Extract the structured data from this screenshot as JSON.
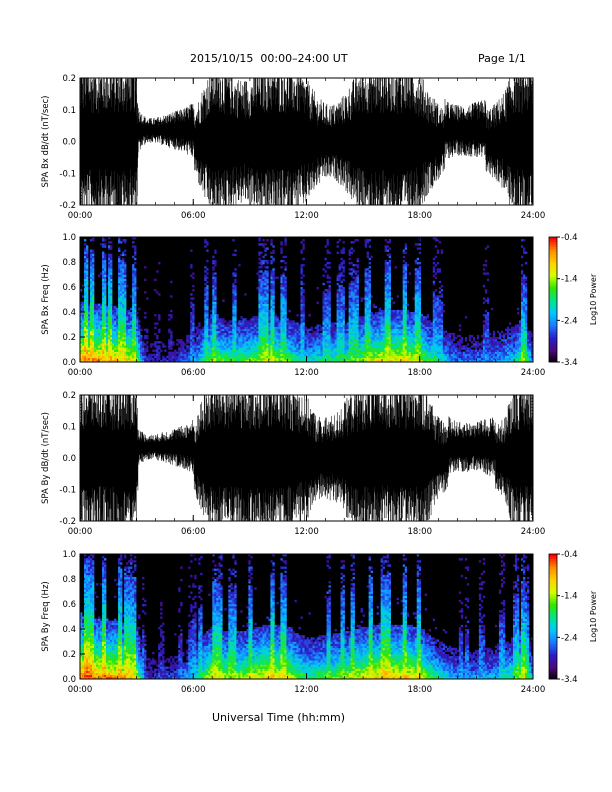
{
  "header": {
    "title": "2015/10/15  00:00–24:00 UT",
    "page": "Page 1/1",
    "xlabel": "Universal Time (hh:mm)"
  },
  "colors": {
    "background": "#ffffff",
    "trace": "#000000",
    "spectrogram_floor": "#000000",
    "colormap": [
      "#000000",
      "#4a0a7a",
      "#2a1ec8",
      "#1e78ff",
      "#00c8ff",
      "#00e48c",
      "#32e600",
      "#d2ff00",
      "#ffd200",
      "#ff8c00",
      "#ff0000"
    ]
  },
  "chart_data": [
    {
      "type": "line",
      "ylabel": "SPA Bx dB/dt (nT/sec)",
      "x_tick_labels": [
        "00:00",
        "06:00",
        "12:00",
        "18:00",
        "24:00"
      ],
      "xlim_hours": [
        0,
        24
      ],
      "ylim": [
        -0.2,
        0.2
      ],
      "y_ticks": [
        -0.2,
        -0.1,
        0.0,
        0.1,
        0.2
      ],
      "y_tick_labels": [
        "-0.2",
        "-0.1",
        "0.0",
        "0.1",
        "0.2"
      ],
      "envelope_hours": [
        0,
        0.5,
        1,
        1.5,
        2,
        2.5,
        3,
        3.1,
        3.5,
        4,
        4.5,
        5,
        5.5,
        6,
        6.5,
        7,
        7.5,
        8,
        8.5,
        9,
        9.5,
        10,
        10.5,
        11,
        11.5,
        12,
        12.5,
        13,
        13.5,
        14,
        14.5,
        15,
        15.5,
        16,
        16.5,
        17,
        17.5,
        18,
        18.5,
        19,
        19.5,
        20,
        20.5,
        21,
        21.5,
        22,
        22.5,
        23,
        23.5,
        24
      ],
      "envelope_amplitude": [
        0.25,
        0.25,
        0.25,
        0.25,
        0.25,
        0.25,
        0.25,
        0.07,
        0.04,
        0.04,
        0.05,
        0.06,
        0.07,
        0.09,
        0.17,
        0.25,
        0.25,
        0.22,
        0.2,
        0.2,
        0.25,
        0.25,
        0.25,
        0.25,
        0.23,
        0.2,
        0.15,
        0.12,
        0.12,
        0.15,
        0.2,
        0.25,
        0.25,
        0.25,
        0.25,
        0.25,
        0.25,
        0.22,
        0.16,
        0.12,
        0.09,
        0.08,
        0.08,
        0.09,
        0.1,
        0.12,
        0.16,
        0.25,
        0.25,
        0.25
      ]
    },
    {
      "type": "heatmap",
      "ylabel": "SPA Bx Freq (Hz)",
      "colorbar_label": "Log10 Power",
      "colorbar_range": [
        -3.4,
        -0.4
      ],
      "colorbar_tick_labels": [
        "-0.4",
        "-1.4",
        "-2.4",
        "-3.4"
      ],
      "x_tick_labels": [
        "00:00",
        "06:00",
        "12:00",
        "18:00",
        "24:00"
      ],
      "xlim_hours": [
        0,
        24
      ],
      "ylim": [
        0.0,
        1.0
      ],
      "y_tick_labels": [
        "0.0",
        "0.2",
        "0.4",
        "0.6",
        "0.8",
        "1.0"
      ],
      "activity_hours": [
        0,
        1,
        2,
        3,
        3.5,
        5,
        6,
        7,
        8,
        9,
        10,
        11,
        12,
        13,
        14,
        15,
        16,
        17,
        18,
        19,
        20,
        21,
        22,
        23,
        23.5,
        24
      ],
      "activity_level": [
        0.9,
        0.85,
        0.8,
        0.7,
        0.15,
        0.2,
        0.35,
        0.65,
        0.55,
        0.6,
        0.7,
        0.6,
        0.45,
        0.5,
        0.55,
        0.65,
        0.75,
        0.75,
        0.7,
        0.45,
        0.3,
        0.3,
        0.35,
        0.45,
        0.65,
        0.3
      ]
    },
    {
      "type": "line",
      "ylabel": "SPA By dB/dt (nT/sec)",
      "x_tick_labels": [
        "00:00",
        "06:00",
        "12:00",
        "18:00",
        "24:00"
      ],
      "xlim_hours": [
        0,
        24
      ],
      "ylim": [
        -0.2,
        0.2
      ],
      "y_ticks": [
        -0.2,
        -0.1,
        0.0,
        0.1,
        0.2
      ],
      "y_tick_labels": [
        "-0.2",
        "-0.1",
        "0.0",
        "0.1",
        "0.2"
      ],
      "envelope_hours": [
        0,
        0.5,
        1,
        1.5,
        2,
        2.5,
        3,
        3.1,
        3.5,
        4,
        4.5,
        5,
        5.5,
        6,
        6.5,
        7,
        7.5,
        8,
        8.5,
        9,
        9.5,
        10,
        10.5,
        11,
        11.5,
        12,
        12.5,
        13,
        13.5,
        14,
        14.5,
        15,
        15.5,
        16,
        16.5,
        17,
        17.5,
        18,
        18.5,
        19,
        19.5,
        20,
        20.5,
        21,
        21.5,
        22,
        22.5,
        23,
        23.5,
        24
      ],
      "envelope_amplitude": [
        0.25,
        0.25,
        0.25,
        0.25,
        0.25,
        0.25,
        0.25,
        0.06,
        0.04,
        0.04,
        0.05,
        0.06,
        0.07,
        0.09,
        0.2,
        0.25,
        0.25,
        0.25,
        0.25,
        0.25,
        0.25,
        0.25,
        0.25,
        0.25,
        0.23,
        0.2,
        0.14,
        0.13,
        0.14,
        0.18,
        0.22,
        0.25,
        0.25,
        0.25,
        0.25,
        0.25,
        0.25,
        0.25,
        0.2,
        0.13,
        0.1,
        0.08,
        0.08,
        0.08,
        0.09,
        0.1,
        0.13,
        0.25,
        0.25,
        0.25
      ]
    },
    {
      "type": "heatmap",
      "ylabel": "SPA By Freq (Hz)",
      "colorbar_label": "Log10 Power",
      "colorbar_range": [
        -3.4,
        -0.4
      ],
      "colorbar_tick_labels": [
        "-0.4",
        "-1.4",
        "-2.4",
        "-3.4"
      ],
      "x_tick_labels": [
        "00:00",
        "06:00",
        "12:00",
        "18:00",
        "24:00"
      ],
      "xlim_hours": [
        0,
        24
      ],
      "ylim": [
        0.0,
        1.0
      ],
      "y_tick_labels": [
        "0.0",
        "0.2",
        "0.4",
        "0.6",
        "0.8",
        "1.0"
      ],
      "activity_hours": [
        0,
        1,
        2,
        3,
        3.5,
        5,
        6,
        7,
        8,
        9,
        10,
        11,
        12,
        13,
        14,
        15,
        16,
        17,
        18,
        19,
        20,
        21,
        22,
        23,
        23.5,
        24
      ],
      "activity_level": [
        0.95,
        0.9,
        0.85,
        0.75,
        0.2,
        0.25,
        0.4,
        0.75,
        0.65,
        0.7,
        0.8,
        0.75,
        0.55,
        0.6,
        0.65,
        0.75,
        0.8,
        0.8,
        0.75,
        0.5,
        0.35,
        0.35,
        0.4,
        0.55,
        0.75,
        0.35
      ]
    }
  ]
}
